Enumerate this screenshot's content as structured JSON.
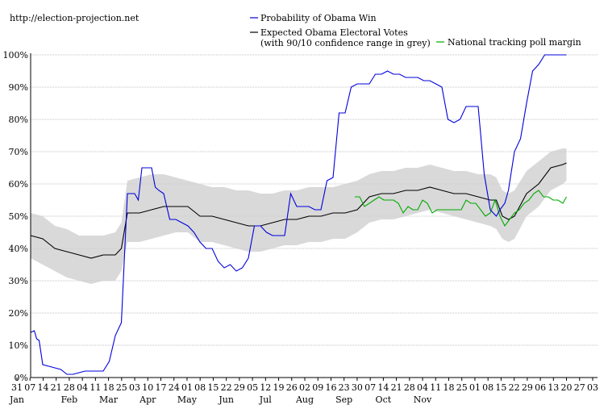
{
  "source_label": "http://election-projection.net",
  "colors": {
    "win_prob": "#0000dd",
    "electoral": "#000000",
    "confidence": "#cfcfcf",
    "poll": "#00aa00",
    "grid": "#888888"
  },
  "chart_data": {
    "type": "line",
    "title": "",
    "xlabel": "",
    "ylabel": "",
    "ylim": [
      0,
      100
    ],
    "y_ticks": [
      "0%",
      "10%",
      "20%",
      "30%",
      "40%",
      "50%",
      "60%",
      "70%",
      "80%",
      "90%",
      "100%"
    ],
    "x_ticks": [
      {
        "day": "31",
        "month": "Jan"
      },
      {
        "day": "07",
        "month": ""
      },
      {
        "day": "14",
        "month": ""
      },
      {
        "day": "21",
        "month": ""
      },
      {
        "day": "28",
        "month": "Feb"
      },
      {
        "day": "04",
        "month": ""
      },
      {
        "day": "11",
        "month": ""
      },
      {
        "day": "18",
        "month": "Mar"
      },
      {
        "day": "25",
        "month": ""
      },
      {
        "day": "03",
        "month": ""
      },
      {
        "day": "10",
        "month": "Apr"
      },
      {
        "day": "17",
        "month": ""
      },
      {
        "day": "24",
        "month": ""
      },
      {
        "day": "01",
        "month": "May"
      },
      {
        "day": "08",
        "month": ""
      },
      {
        "day": "15",
        "month": ""
      },
      {
        "day": "22",
        "month": "Jun"
      },
      {
        "day": "29",
        "month": ""
      },
      {
        "day": "05",
        "month": ""
      },
      {
        "day": "12",
        "month": "Jul"
      },
      {
        "day": "19",
        "month": ""
      },
      {
        "day": "26",
        "month": ""
      },
      {
        "day": "02",
        "month": "Aug"
      },
      {
        "day": "09",
        "month": ""
      },
      {
        "day": "16",
        "month": ""
      },
      {
        "day": "23",
        "month": "Sep"
      },
      {
        "day": "30",
        "month": ""
      },
      {
        "day": "07",
        "month": ""
      },
      {
        "day": "14",
        "month": "Oct"
      },
      {
        "day": "21",
        "month": ""
      },
      {
        "day": "28",
        "month": ""
      },
      {
        "day": "04",
        "month": "Nov"
      },
      {
        "day": "11",
        "month": ""
      },
      {
        "day": "18",
        "month": ""
      },
      {
        "day": "25",
        "month": ""
      },
      {
        "day": "01",
        "month": ""
      },
      {
        "day": "08",
        "month": ""
      },
      {
        "day": "15",
        "month": ""
      },
      {
        "day": "22",
        "month": ""
      },
      {
        "day": "29",
        "month": ""
      },
      {
        "day": "06",
        "month": ""
      },
      {
        "day": "13",
        "month": ""
      },
      {
        "day": "20",
        "month": ""
      },
      {
        "day": "27",
        "month": ""
      },
      {
        "day": "03",
        "month": ""
      }
    ],
    "legend": [
      {
        "key": "win",
        "label": "Probability of Obama Win"
      },
      {
        "key": "ev",
        "label": "Expected Obama Electoral Votes",
        "sublabel": "(with 90/10 confidence range in grey)"
      },
      {
        "key": "poll",
        "label": "National tracking poll margin"
      }
    ],
    "x_range": [
      0,
      45
    ],
    "series": [
      {
        "name": "Probability of Obama Win",
        "color": "#0000dd",
        "x": [
          0,
          0.3,
          0.5,
          0.7,
          1,
          1.5,
          2,
          2.5,
          3,
          3.5,
          4,
          4.5,
          5,
          5.5,
          6,
          6.5,
          7,
          7.5,
          8,
          8.3,
          8.6,
          8.9,
          9.2,
          9.5,
          9.8,
          10,
          10.3,
          10.6,
          11,
          11.5,
          12,
          12.5,
          13,
          13.5,
          14,
          14.5,
          15,
          15.5,
          16,
          16.5,
          17,
          17.5,
          18,
          18.5,
          19,
          19.5,
          20,
          20.5,
          21,
          21.5,
          22,
          22.5,
          23,
          23.5,
          24,
          24.5,
          25,
          25.5,
          26,
          26.5,
          27,
          27.5,
          28,
          28.5,
          29,
          29.5,
          30,
          30.5,
          31,
          31.5,
          32,
          32.5,
          33,
          33.5,
          34,
          34.5,
          35,
          35.5,
          36,
          36.5,
          37,
          37.5,
          38,
          38.5,
          38.8,
          39.2,
          39.5,
          40,
          40.5,
          41,
          41.5,
          42,
          42.5,
          43,
          43.5,
          44,
          44.3
        ],
        "values": [
          14,
          14.5,
          12,
          11.5,
          4,
          3.5,
          3,
          2.5,
          1,
          1,
          1.5,
          2,
          2,
          2,
          2,
          5,
          13,
          17,
          57,
          57,
          57,
          55,
          65,
          65,
          65,
          65,
          59,
          58,
          57,
          49,
          49,
          48,
          47,
          45,
          42,
          40,
          40,
          36,
          34,
          35,
          33,
          34,
          37,
          47,
          47,
          45,
          44,
          44,
          44,
          57,
          53,
          53,
          53,
          52,
          52,
          61,
          62,
          82,
          82,
          90,
          91,
          91,
          91,
          94,
          94,
          95,
          94,
          94,
          93,
          93,
          93,
          92,
          92,
          91,
          90,
          80,
          79,
          80,
          84,
          84,
          84,
          63,
          52,
          50,
          52,
          54,
          58,
          70,
          74,
          85,
          95,
          97,
          100,
          100,
          100,
          100,
          100
        ]
      },
      {
        "name": "Expected Obama Electoral Votes",
        "color": "#000000",
        "x": [
          0,
          1,
          2,
          3,
          4,
          5,
          6,
          7,
          7.5,
          8,
          9,
          10,
          11,
          12,
          13,
          14,
          15,
          16,
          17,
          18,
          19,
          20,
          21,
          22,
          23,
          24,
          25,
          26,
          27,
          28,
          29,
          30,
          31,
          32,
          33,
          34,
          35,
          36,
          37,
          38,
          38.5,
          39,
          39.5,
          40,
          41,
          42,
          43,
          44,
          44.3
        ],
        "values": [
          44,
          43,
          40,
          39,
          38,
          37,
          38,
          38,
          40,
          51,
          51,
          52,
          53,
          53,
          53,
          50,
          50,
          49,
          48,
          47,
          47,
          48,
          49,
          49,
          50,
          50,
          51,
          51,
          52,
          56,
          57,
          57,
          58,
          58,
          59,
          58,
          57,
          57,
          56,
          55,
          55,
          50,
          49,
          50,
          57,
          60,
          65,
          66,
          66.5
        ],
        "band_upper": [
          51,
          50,
          47,
          46,
          44,
          44,
          44,
          45,
          48,
          61,
          62,
          63,
          63,
          62,
          61,
          60,
          59,
          59,
          58,
          58,
          57,
          57,
          58,
          58,
          59,
          59,
          59,
          60,
          61,
          63,
          64,
          64,
          65,
          65,
          66,
          65,
          64,
          64,
          63,
          63,
          62,
          58,
          57,
          58,
          64,
          67,
          70,
          71,
          71
        ],
        "band_lower": [
          37,
          35,
          33,
          31,
          30,
          29,
          30,
          30,
          33,
          42,
          42,
          43,
          44,
          45,
          45,
          42,
          42,
          41,
          40,
          39,
          39,
          40,
          41,
          41,
          42,
          42,
          43,
          43,
          45,
          48,
          49,
          49,
          50,
          51,
          52,
          51,
          50,
          49,
          48,
          47,
          46,
          43,
          42,
          43,
          50,
          53,
          58,
          60,
          61
        ]
      },
      {
        "name": "National tracking poll margin",
        "color": "#00aa00",
        "x": [
          26.8,
          27.2,
          27.6,
          28,
          28.4,
          28.8,
          29.2,
          29.6,
          30,
          30.4,
          30.8,
          31.2,
          31.6,
          32,
          32.4,
          32.8,
          33.2,
          33.6,
          34,
          34.4,
          34.8,
          35.2,
          35.6,
          36,
          36.4,
          36.8,
          37.2,
          37.6,
          38,
          38.4,
          38.8,
          39.2,
          39.6,
          40,
          40.4,
          40.8,
          41.2,
          41.6,
          42,
          42.4,
          42.8,
          43.2,
          43.6,
          44,
          44.3
        ],
        "values": [
          56,
          56,
          53,
          54,
          55,
          56,
          55,
          55,
          55,
          54,
          51,
          53,
          52,
          52,
          55,
          54,
          51,
          52,
          52,
          52,
          52,
          52,
          52,
          55,
          54,
          54,
          52,
          50,
          51,
          55,
          50,
          47,
          49,
          51,
          52,
          54,
          55,
          57,
          58,
          56,
          56,
          55,
          55,
          54,
          56
        ]
      }
    ]
  }
}
